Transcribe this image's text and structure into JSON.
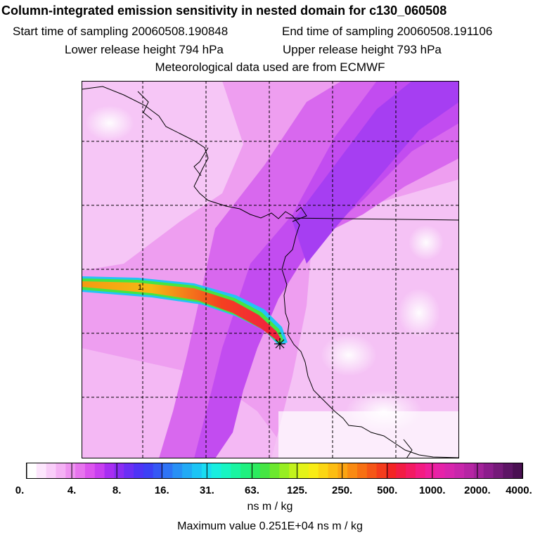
{
  "header": {
    "title": "Column-integrated emission sensitivity in nested domain for c130_060508",
    "start_label": "Start time of sampling 20060508.190848",
    "end_label": "End time of sampling 20060508.191106",
    "lower_label": "Lower release height  794 hPa",
    "upper_label": "Upper release height  793 hPa",
    "met_label": "Meteorological data used are from ECMWF"
  },
  "colorbar": {
    "tick_labels": [
      "0.",
      "4.",
      "8.",
      "16.",
      "31.",
      "63.",
      "125.",
      "250.",
      "500.",
      "1000.",
      "2000.",
      "4000."
    ],
    "colors": [
      "#ffffff",
      "#fde6fd",
      "#f9cdf9",
      "#f4b1f4",
      "#ee93f0",
      "#e774ee",
      "#dc55ee",
      "#c83ff0",
      "#a82ef2",
      "#8a2df3",
      "#6b2ff5",
      "#4f34f6",
      "#3d40f5",
      "#3558f5",
      "#2e74f5",
      "#2890f5",
      "#22aaf5",
      "#1cc4f5",
      "#18dcf2",
      "#17eedf",
      "#17f5c2",
      "#19f5a1",
      "#1ef17f",
      "#2ceb5e",
      "#45e543",
      "#6ce82e",
      "#97ee22",
      "#c2f21c",
      "#e4f318",
      "#f8ec15",
      "#fbd613",
      "#fcbd12",
      "#fba412",
      "#f98a12",
      "#f77013",
      "#f55617",
      "#f43c1c",
      "#f32424",
      "#f21c44",
      "#f31a63",
      "#f31b82",
      "#ef1e9a",
      "#e622a8",
      "#d825ad",
      "#c826ab",
      "#b625a4",
      "#a3229a",
      "#8c1d8c",
      "#751a79",
      "#5d1565",
      "#4a1052"
    ],
    "units": "ns m / kg",
    "max_value": "Maximum value  0.251E+04 ns m / kg"
  },
  "map": {
    "release_marker": "star",
    "numeric_label": "1"
  }
}
